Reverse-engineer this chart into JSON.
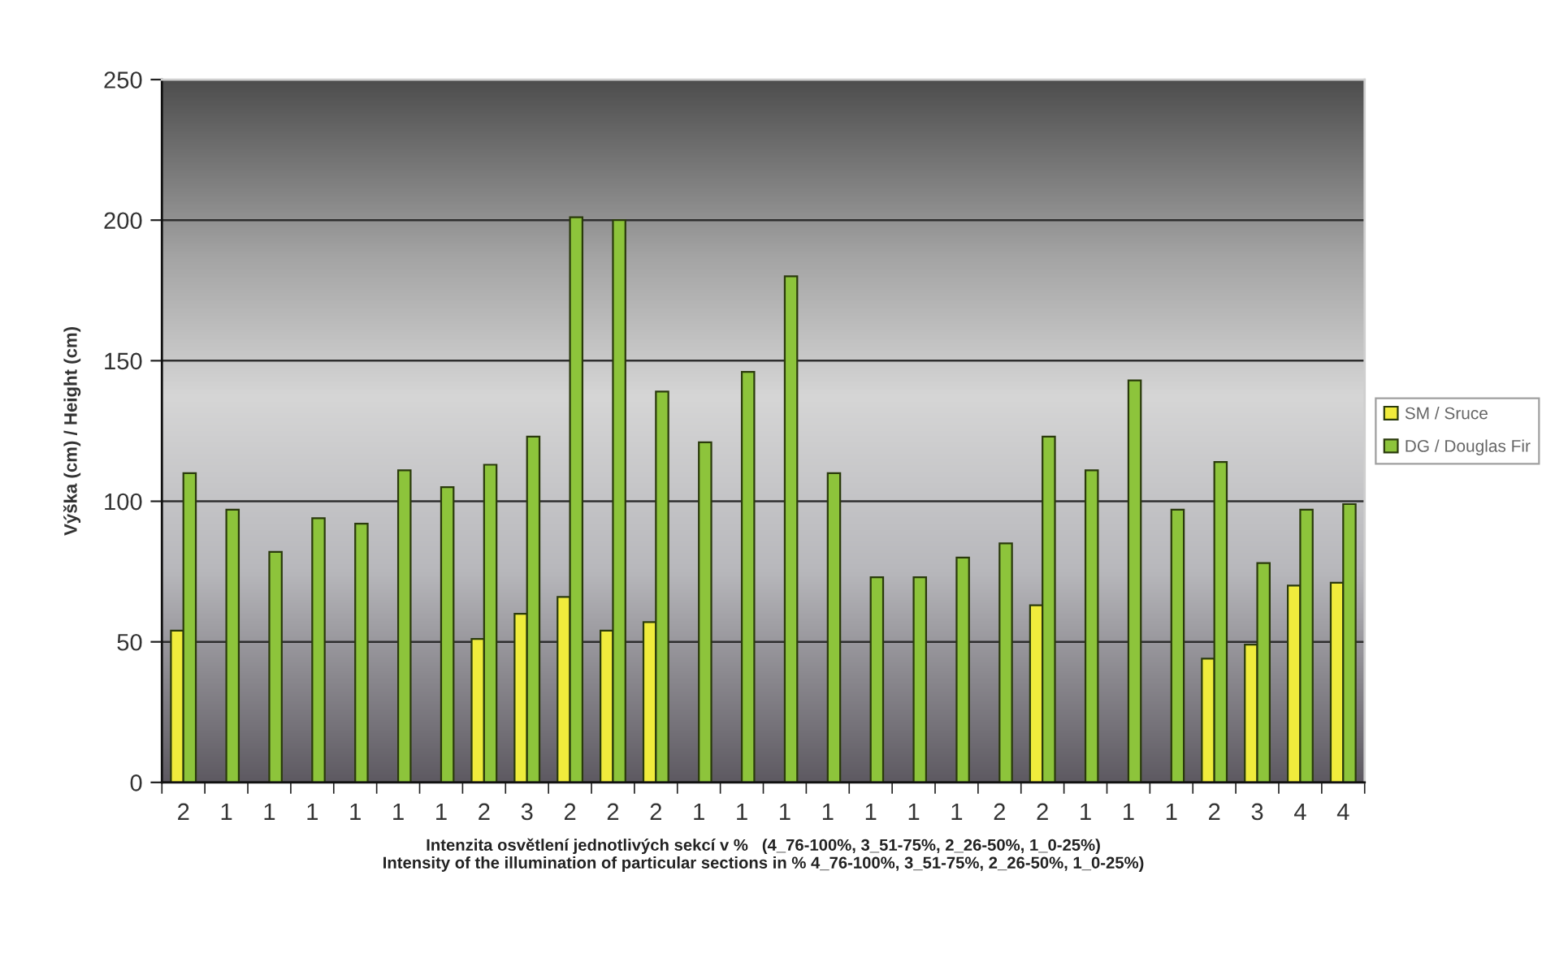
{
  "chart_data": {
    "type": "bar",
    "xlabel": "Intenzita osvětlení jednotlivých sekcí v %   (4_76-100%, 3_51-75%, 2_26-50%, 1_0-25%)\nIntensity of the illumination of particular sections in % 4_76-100%, 3_51-75%, 2_26-50%, 1_0-25%)",
    "ylabel": "Výška (cm) / Height (cm)",
    "categories": [
      "2",
      "1",
      "1",
      "1",
      "1",
      "1",
      "1",
      "2",
      "3",
      "2",
      "2",
      "2",
      "1",
      "1",
      "1",
      "1",
      "1",
      "1",
      "1",
      "2",
      "2",
      "1",
      "1",
      "1",
      "2",
      "3",
      "4",
      "4"
    ],
    "series": [
      {
        "name": "SM / Sruce",
        "color": "#f0ec3c",
        "values": [
          54,
          null,
          null,
          null,
          null,
          null,
          null,
          51,
          60,
          66,
          54,
          57,
          null,
          null,
          null,
          null,
          null,
          null,
          null,
          null,
          63,
          null,
          null,
          null,
          44,
          49,
          70,
          71
        ]
      },
      {
        "name": "DG / Douglas Fir",
        "color": "#8dc43b",
        "values": [
          110,
          97,
          82,
          94,
          92,
          111,
          105,
          113,
          123,
          201,
          200,
          139,
          121,
          146,
          180,
          110,
          73,
          73,
          80,
          85,
          123,
          111,
          143,
          97,
          114,
          78,
          97,
          99
        ]
      }
    ],
    "ylim": [
      0,
      250
    ],
    "yticks": [
      0,
      50,
      100,
      150,
      200,
      250
    ],
    "grid": "y",
    "legend": "right"
  }
}
